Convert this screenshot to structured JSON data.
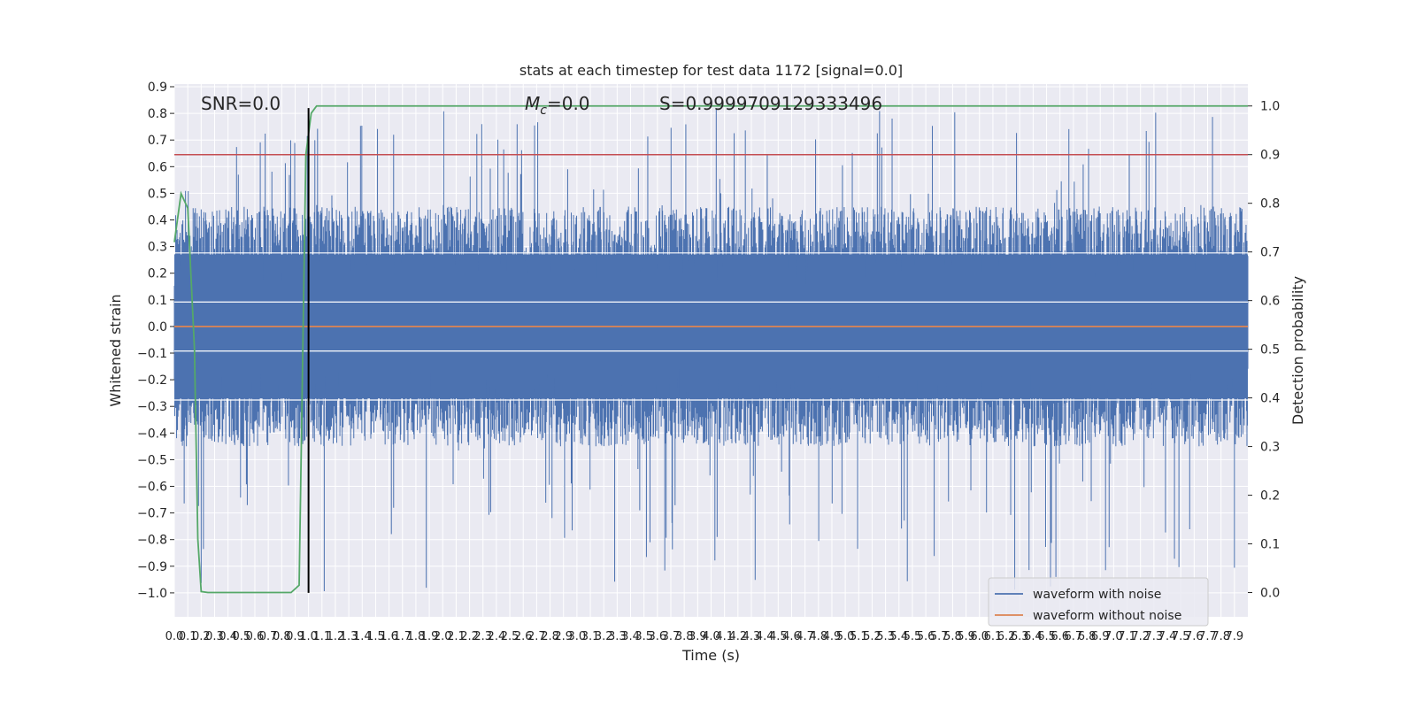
{
  "chart_data": {
    "type": "line",
    "title": "stats at each timestep for test data 1172 [signal=0.0]",
    "xlabel": "Time (s)",
    "ylabel": "Whitened strain",
    "y2label": "Detection probability",
    "xlim": [
      0.0,
      8.0
    ],
    "ylim": [
      -1.09,
      0.91
    ],
    "y2lim": [
      -0.05,
      1.045
    ],
    "x_ticks": [
      "0.0",
      "0.1",
      "0.2",
      "0.3",
      "0.4",
      "0.5",
      "0.6",
      "0.7",
      "0.8",
      "0.9",
      "1.0",
      "1.1",
      "1.2",
      "1.3",
      "1.4",
      "1.5",
      "1.6",
      "1.7",
      "1.8",
      "1.9",
      "2.0",
      "2.1",
      "2.2",
      "2.3",
      "2.4",
      "2.5",
      "2.6",
      "2.7",
      "2.8",
      "2.9",
      "3.0",
      "3.1",
      "3.2",
      "3.3",
      "3.4",
      "3.5",
      "3.6",
      "3.7",
      "3.8",
      "3.9",
      "4.0",
      "4.1",
      "4.2",
      "4.3",
      "4.4",
      "4.5",
      "4.6",
      "4.7",
      "4.8",
      "4.9",
      "5.0",
      "5.1",
      "5.2",
      "5.3",
      "5.4",
      "5.5",
      "5.6",
      "5.7",
      "5.8",
      "5.9",
      "6.0",
      "6.1",
      "6.2",
      "6.3",
      "6.4",
      "6.5",
      "6.6",
      "6.7",
      "6.8",
      "6.9",
      "7.0",
      "7.1",
      "7.2",
      "7.3",
      "7.4",
      "7.5",
      "7.6",
      "7.7",
      "7.8",
      "7.9"
    ],
    "y_ticks": [
      "0.9",
      "0.8",
      "0.7",
      "0.6",
      "0.5",
      "0.4",
      "0.3",
      "0.2",
      "0.1",
      "0.0",
      "−0.1",
      "−0.2",
      "−0.3",
      "−0.4",
      "−0.5",
      "−0.6",
      "−0.7",
      "−0.8",
      "−0.9",
      "−1.0"
    ],
    "y2_ticks": [
      "1.0",
      "0.9",
      "0.8",
      "0.7",
      "0.6",
      "0.5",
      "0.4",
      "0.3",
      "0.2",
      "0.1",
      "0.0"
    ],
    "annotations": {
      "snr": "SNR=0.0",
      "mc_symbol": "M",
      "mc_sub": "c",
      "mc_value": "=0.0",
      "s": "S=0.9999709129333496"
    },
    "legend": {
      "placement": "lower-right",
      "entries": [
        "waveform with noise",
        "waveform without noise"
      ]
    },
    "series": [
      {
        "name": "waveform with noise",
        "color": "#4c72b0",
        "axis": "left",
        "description_of_values": "dense noise signal spanning approximately -1.0 to 0.82",
        "x_range": [
          0.0,
          8.0
        ],
        "amplitude_core": 0.27,
        "amplitude_peaks_max": 0.82,
        "amplitude_troughs_min": -1.0
      },
      {
        "name": "waveform without noise",
        "color": "#dd8452",
        "axis": "left",
        "x": [
          0.0,
          8.0
        ],
        "y": [
          0.0,
          0.0
        ]
      },
      {
        "color": "#55a868",
        "axis": "right",
        "x": [
          0.0,
          0.05,
          0.1,
          0.15,
          0.175,
          0.2,
          0.25,
          0.3,
          0.5,
          0.7,
          0.87,
          0.93,
          0.98,
          1.02,
          1.06,
          1.5,
          2.5,
          4.0,
          6.0,
          8.0
        ],
        "y": [
          0.72,
          0.82,
          0.79,
          0.5,
          0.11,
          0.002,
          0.0,
          0.0,
          0.0,
          0.0,
          0.0,
          0.015,
          0.9,
          0.985,
          1.0,
          1.0,
          1.0,
          1.0,
          1.0,
          1.0
        ]
      }
    ],
    "threshold": {
      "color": "#c44e52",
      "axis": "right",
      "value": 0.9
    },
    "vertical_marker": {
      "color": "#000000",
      "x": 1.0,
      "y_from": -1.0,
      "y_to": 0.82
    },
    "grid": true,
    "background": "#eaeaf2"
  }
}
